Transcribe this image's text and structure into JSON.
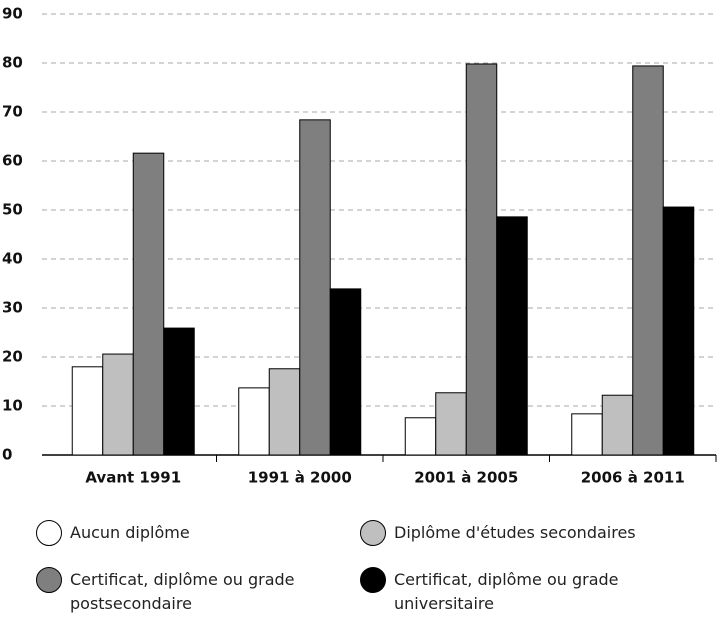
{
  "chart_data": {
    "type": "bar",
    "categories": [
      "Avant 1991",
      "1991 à 2000",
      "2001 à 2005",
      "2006 à 2011"
    ],
    "series": [
      {
        "name": "Aucun diplôme",
        "color": "#ffffff",
        "values": [
          18,
          13.7,
          7.6,
          8.4
        ]
      },
      {
        "name": "Diplôme d'études secondaires",
        "color": "#bfbfbf",
        "values": [
          20.6,
          17.6,
          12.7,
          12.2
        ]
      },
      {
        "name": "Certificat, diplôme ou grade postsecondaire",
        "color": "#7f7f7f",
        "values": [
          61.6,
          68.4,
          79.8,
          79.4
        ]
      },
      {
        "name": "Certificat, diplôme ou grade universitaire",
        "color": "#000000",
        "values": [
          25.9,
          33.9,
          48.6,
          50.6
        ]
      }
    ],
    "ylim": [
      0,
      90
    ],
    "yticks": [
      0,
      10,
      20,
      30,
      40,
      50,
      60,
      70,
      80,
      90
    ],
    "grid": true
  }
}
